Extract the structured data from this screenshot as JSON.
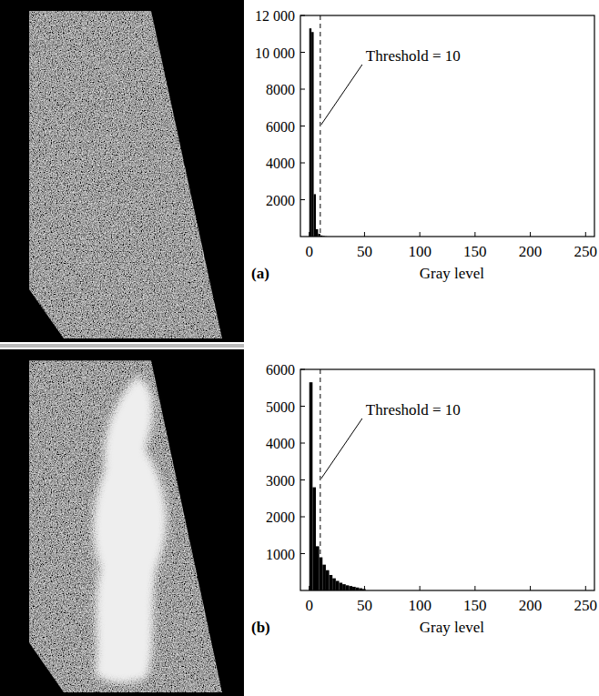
{
  "chart_data": [
    {
      "type": "histogram",
      "label": "(a)",
      "x_label": "Gray level",
      "bins": [
        0,
        2,
        4,
        6,
        8,
        10,
        12,
        14,
        16
      ],
      "values": [
        11300,
        11100,
        2300,
        400,
        150,
        60,
        30,
        10
      ],
      "color": "#000000",
      "xlim": [
        -8,
        258
      ],
      "xticks": [
        0,
        50,
        100,
        150,
        200,
        250
      ],
      "ylim": [
        0,
        12000
      ],
      "yticks": [
        2000,
        4000,
        6000,
        8000,
        {
          "value": 10000,
          "label": "10 000"
        },
        {
          "value": 12000,
          "label": "12 000"
        }
      ],
      "annotations": [
        {
          "text": "Threshold = 10",
          "x": 10
        }
      ]
    },
    {
      "type": "histogram",
      "label": "(b)",
      "x_label": "Gray level",
      "bins": [
        0,
        3,
        6,
        9,
        12,
        15,
        18,
        21,
        24,
        27,
        30,
        33,
        36,
        39,
        42,
        45,
        48,
        51
      ],
      "values": [
        5650,
        2800,
        1200,
        900,
        700,
        550,
        420,
        330,
        260,
        210,
        170,
        140,
        120,
        100,
        80,
        60,
        40
      ],
      "color": "#000000",
      "xlim": [
        -8,
        258
      ],
      "xticks": [
        0,
        50,
        100,
        150,
        200,
        250
      ],
      "ylim": [
        0,
        6000
      ],
      "yticks": [
        1000,
        2000,
        3000,
        4000,
        5000,
        6000
      ],
      "annotations": [
        {
          "text": "Threshold = 10",
          "x": 10
        }
      ]
    }
  ]
}
